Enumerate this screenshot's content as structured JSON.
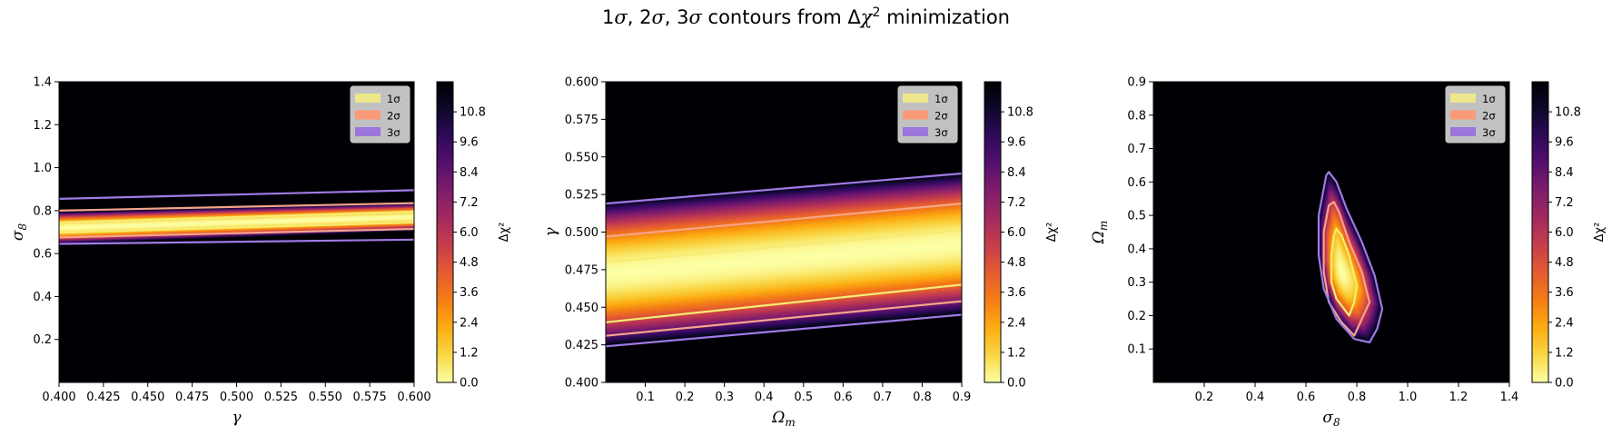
{
  "figure": {
    "suptitle_parts": [
      "1",
      "σ",
      ", 2",
      "σ",
      ", 3",
      "σ",
      " contours from Δ",
      "χ",
      "2",
      " minimization"
    ]
  },
  "colorbar": {
    "label": "Δχ²",
    "ticks": [
      "0.0",
      "1.2",
      "2.4",
      "3.6",
      "4.8",
      "6.0",
      "7.2",
      "8.4",
      "9.6",
      "10.8"
    ],
    "range": [
      0,
      12
    ],
    "colormap": "inferno_r",
    "colormap_stops": [
      "#fcffa4",
      "#f9d745",
      "#fcad12",
      "#f57d15",
      "#e55c30",
      "#c73e4c",
      "#a32a5e",
      "#7f1d6b",
      "#56106e",
      "#2f0a5b",
      "#0d0829",
      "#000004"
    ]
  },
  "legend": {
    "position": "top-right",
    "entries": [
      {
        "label": "1σ",
        "color": "#ede68a"
      },
      {
        "label": "2σ",
        "color": "#fa9a76"
      },
      {
        "label": "3σ",
        "color": "#9b76dc"
      }
    ]
  },
  "contour_levels": {
    "1σ": 2.3,
    "2σ": 6.18,
    "3σ": 11.83
  },
  "contour_colors": {
    "1σ": "#f7ec73",
    "2σ": "#f5a48a",
    "3σ": "#a07ae6"
  },
  "chart_data": [
    {
      "type": "heatmap",
      "title": "",
      "xlabel": "γ",
      "ylabel_main": "σ",
      "ylabel_sub": "8",
      "xlim": [
        0.4,
        0.6
      ],
      "ylim": [
        0.0,
        1.4
      ],
      "xticks": [
        "0.400",
        "0.425",
        "0.450",
        "0.475",
        "0.500",
        "0.525",
        "0.550",
        "0.575",
        "0.600"
      ],
      "yticks": [
        "0.2",
        "0.4",
        "0.6",
        "0.8",
        "1.0",
        "1.2",
        "1.4"
      ],
      "model": {
        "kind": "band",
        "center": [
          0.72,
          0.77
        ],
        "halfwidth_3sigma": [
          0.075,
          0.065
        ]
      },
      "contours": {
        "1σ": {
          "lower": [
            [
              0.4,
              0.697
            ],
            [
              0.6,
              0.745
            ]
          ],
          "upper": [
            [
              0.4,
              0.745
            ],
            [
              0.6,
              0.795
            ]
          ]
        },
        "2σ": {
          "lower": [
            [
              0.4,
              0.675
            ],
            [
              0.6,
              0.715
            ]
          ],
          "upper": [
            [
              0.4,
              0.8
            ],
            [
              0.6,
              0.835
            ]
          ]
        },
        "3σ": {
          "lower": [
            [
              0.4,
              0.645
            ],
            [
              0.6,
              0.665
            ]
          ],
          "upper": [
            [
              0.4,
              0.855
            ],
            [
              0.6,
              0.895
            ]
          ]
        }
      }
    },
    {
      "type": "heatmap",
      "title": "",
      "xlabel_main": "Ω",
      "xlabel_sub": "m",
      "ylabel": "γ",
      "xlim": [
        0.0,
        0.9
      ],
      "ylim": [
        0.4,
        0.6
      ],
      "xticks": [
        "0.1",
        "0.2",
        "0.3",
        "0.4",
        "0.5",
        "0.6",
        "0.7",
        "0.8",
        "0.9"
      ],
      "yticks": [
        "0.400",
        "0.425",
        "0.450",
        "0.475",
        "0.500",
        "0.525",
        "0.550",
        "0.575",
        "0.600"
      ],
      "model": {
        "kind": "band",
        "center": [
          0.472,
          0.492
        ],
        "halfwidth_3sigma": [
          0.048,
          0.047
        ]
      },
      "contours": {
        "1σ": {
          "lower": [
            [
              0.0,
              0.44
            ],
            [
              0.9,
              0.465
            ]
          ],
          "upper": [
            [
              0.0,
              0.48
            ],
            [
              0.9,
              0.501
            ]
          ]
        },
        "2σ": {
          "lower": [
            [
              0.0,
              0.431
            ],
            [
              0.9,
              0.454
            ]
          ],
          "upper": [
            [
              0.0,
              0.497
            ],
            [
              0.9,
              0.519
            ]
          ]
        },
        "3σ": {
          "lower": [
            [
              0.0,
              0.424
            ],
            [
              0.9,
              0.445
            ]
          ],
          "upper": [
            [
              0.0,
              0.519
            ],
            [
              0.9,
              0.539
            ]
          ]
        }
      }
    },
    {
      "type": "heatmap",
      "title": "",
      "xlabel_main": "σ",
      "xlabel_sub": "8",
      "ylabel_main": "Ω",
      "ylabel_sub": "m",
      "xlim": [
        0.0,
        1.4
      ],
      "ylim": [
        0.0,
        0.9
      ],
      "xticks": [
        "0.2",
        "0.4",
        "0.6",
        "0.8",
        "1.0",
        "1.2",
        "1.4"
      ],
      "yticks": [
        "0.1",
        "0.2",
        "0.3",
        "0.4",
        "0.5",
        "0.6",
        "0.7",
        "0.8",
        "0.9"
      ],
      "model": {
        "kind": "blob",
        "center": [
          0.74,
          0.33
        ]
      },
      "contours": {
        "1σ": {
          "closed": [
            [
              0.71,
              0.44
            ],
            [
              0.7,
              0.38
            ],
            [
              0.7,
              0.3
            ],
            [
              0.72,
              0.25
            ],
            [
              0.77,
              0.2
            ],
            [
              0.79,
              0.24
            ],
            [
              0.8,
              0.29
            ],
            [
              0.77,
              0.38
            ],
            [
              0.74,
              0.44
            ],
            [
              0.72,
              0.46
            ]
          ]
        },
        "2σ": {
          "closed": [
            [
              0.69,
              0.53
            ],
            [
              0.67,
              0.45
            ],
            [
              0.67,
              0.33
            ],
            [
              0.69,
              0.24
            ],
            [
              0.74,
              0.18
            ],
            [
              0.79,
              0.14
            ],
            [
              0.82,
              0.19
            ],
            [
              0.85,
              0.24
            ],
            [
              0.82,
              0.33
            ],
            [
              0.77,
              0.42
            ],
            [
              0.73,
              0.51
            ],
            [
              0.71,
              0.54
            ]
          ]
        },
        "3σ": {
          "closed": [
            [
              0.68,
              0.62
            ],
            [
              0.65,
              0.5
            ],
            [
              0.65,
              0.38
            ],
            [
              0.67,
              0.28
            ],
            [
              0.72,
              0.19
            ],
            [
              0.79,
              0.13
            ],
            [
              0.85,
              0.12
            ],
            [
              0.88,
              0.16
            ],
            [
              0.9,
              0.22
            ],
            [
              0.87,
              0.32
            ],
            [
              0.82,
              0.42
            ],
            [
              0.76,
              0.52
            ],
            [
              0.72,
              0.6
            ],
            [
              0.69,
              0.63
            ]
          ]
        }
      }
    }
  ]
}
